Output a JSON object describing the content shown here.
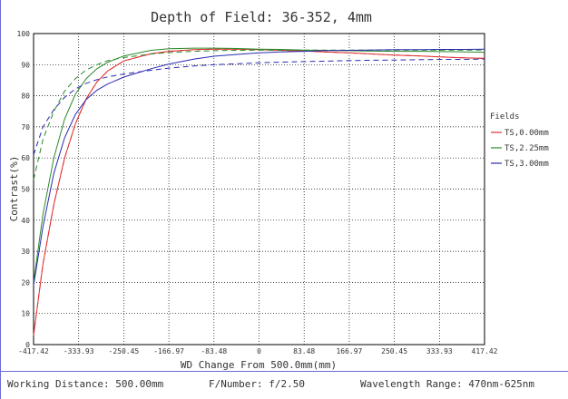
{
  "chart_data": {
    "type": "line",
    "title": "Depth of Field: 36-352, 4mm",
    "xlabel": "WD Change From 500.0mm(mm)",
    "ylabel": "Contrast(%)",
    "xlim": [
      -417.42,
      417.42
    ],
    "ylim": [
      0,
      100
    ],
    "x_ticks": [
      "-417.42",
      "-333.93",
      "-250.45",
      "-166.97",
      "-83.48",
      "0",
      "83.48",
      "166.97",
      "250.45",
      "333.93",
      "417.42"
    ],
    "y_ticks": [
      "0",
      "10",
      "20",
      "30",
      "40",
      "50",
      "60",
      "70",
      "80",
      "90",
      "100"
    ],
    "grid": true,
    "legend_title": "Fields",
    "legend_position": "right",
    "series": [
      {
        "name": "TS,0.00mm",
        "line": "solid",
        "color": "#e03030",
        "x": [
          -417.42,
          -400,
          -380,
          -360,
          -340,
          -320,
          -300,
          -280,
          -250.45,
          -200,
          -166.97,
          -120,
          -83.48,
          -40,
          0,
          40,
          83.48,
          120,
          166.97,
          200,
          250.45,
          300,
          333.93,
          380,
          417.42
        ],
        "y": [
          3,
          26,
          45,
          60,
          71,
          79,
          84.5,
          88,
          91.2,
          93.5,
          94.3,
          94.8,
          95,
          95,
          94.8,
          94.6,
          94.4,
          94.1,
          93.8,
          93.5,
          93.1,
          92.8,
          92.5,
          92.2,
          92
        ]
      },
      {
        "name": "TS,0.00mm",
        "line": "dashed",
        "color": "#e03030",
        "x": [
          -417.42,
          -400,
          -380,
          -360,
          -340,
          -320,
          -300,
          -280,
          -250.45,
          -200,
          -166.97,
          -120,
          -83.48,
          -40,
          0,
          40,
          83.48,
          120,
          166.97,
          200,
          250.45,
          300,
          333.93,
          380,
          417.42
        ],
        "y": [
          3,
          26,
          45,
          60,
          71,
          79,
          84.5,
          88,
          91.2,
          93.5,
          94.3,
          94.8,
          95,
          95,
          94.8,
          94.6,
          94.4,
          94.1,
          93.8,
          93.5,
          93.1,
          92.8,
          92.5,
          92.2,
          92
        ]
      },
      {
        "name": "TS,2.25mm",
        "line": "solid",
        "color": "#2a8a2a",
        "x": [
          -417.42,
          -400,
          -380,
          -360,
          -340,
          -320,
          -300,
          -280,
          -250.45,
          -200,
          -166.97,
          -120,
          -83.48,
          -40,
          0,
          40,
          83.48,
          120,
          166.97,
          200,
          250.45,
          300,
          333.93,
          380,
          417.42
        ],
        "y": [
          20,
          42,
          60,
          72.5,
          80.5,
          85.5,
          88.7,
          90.8,
          92.8,
          94.6,
          95.1,
          95.3,
          95.3,
          95.2,
          95,
          94.9,
          94.7,
          94.6,
          94.5,
          94.4,
          94.3,
          94.3,
          94.2,
          94.1,
          94
        ]
      },
      {
        "name": "TS,2.25mm",
        "line": "dashed",
        "color": "#2a8a2a",
        "x": [
          -417.42,
          -400,
          -380,
          -360,
          -340,
          -320,
          -300,
          -280,
          -250.45,
          -200,
          -166.97,
          -120,
          -83.48,
          -40,
          0,
          40,
          83.48,
          120,
          166.97,
          200,
          250.45,
          300,
          333.93,
          380,
          417.42
        ],
        "y": [
          53,
          66,
          75,
          81.5,
          85.5,
          88.3,
          90,
          91.3,
          92.3,
          93.4,
          93.9,
          94.3,
          94.5,
          94.6,
          94.7,
          94.7,
          94.7,
          94.7,
          94.7,
          94.7,
          94.7,
          94.7,
          94.7,
          94.7,
          94.7
        ]
      },
      {
        "name": "TS,3.00mm",
        "line": "solid",
        "color": "#2a2ab0",
        "x": [
          -417.42,
          -400,
          -380,
          -360,
          -340,
          -320,
          -300,
          -280,
          -250.45,
          -200,
          -166.97,
          -120,
          -83.48,
          -40,
          0,
          40,
          83.48,
          120,
          166.97,
          200,
          250.45,
          300,
          333.93,
          380,
          417.42
        ],
        "y": [
          19,
          38,
          55,
          66.5,
          74,
          78.8,
          81.8,
          83.8,
          86,
          88.7,
          90.2,
          91.8,
          92.7,
          93.3,
          93.8,
          94.1,
          94.3,
          94.5,
          94.6,
          94.7,
          94.8,
          94.8,
          94.9,
          94.9,
          95
        ]
      },
      {
        "name": "TS,3.00mm",
        "line": "dashed",
        "color": "#2a2ab0",
        "x": [
          -417.42,
          -400,
          -380,
          -360,
          -340,
          -320,
          -300,
          -280,
          -250.45,
          -200,
          -166.97,
          -120,
          -83.48,
          -40,
          0,
          40,
          83.48,
          120,
          166.97,
          200,
          250.45,
          300,
          333.93,
          380,
          417.42
        ],
        "y": [
          61,
          70,
          75.5,
          79.5,
          82.2,
          84,
          85.2,
          86.1,
          87,
          88.2,
          88.9,
          89.6,
          90,
          90.3,
          90.6,
          90.8,
          91,
          91.1,
          91.3,
          91.4,
          91.5,
          91.6,
          91.7,
          91.7,
          91.8
        ]
      }
    ],
    "legend": [
      {
        "label": "TS,0.00mm",
        "color": "#e03030"
      },
      {
        "label": "TS,2.25mm",
        "color": "#2a8a2a"
      },
      {
        "label": "TS,3.00mm",
        "color": "#2a2ab0"
      }
    ]
  },
  "footer": {
    "working_distance": "Working Distance: 500.00mm",
    "f_number": "F/Number: f/2.50",
    "wavelength": "Wavelength Range: 470nm-625nm"
  }
}
